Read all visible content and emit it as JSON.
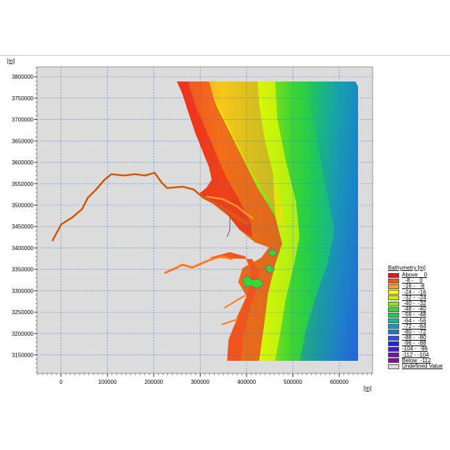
{
  "axes": {
    "y_unit_label": "[m]",
    "x_unit_label": "[m]",
    "x_ticks": [
      {
        "value": 0,
        "label": "0"
      },
      {
        "value": 100000,
        "label": "100000"
      },
      {
        "value": 200000,
        "label": "200000"
      },
      {
        "value": 300000,
        "label": "300000"
      },
      {
        "value": 400000,
        "label": "400000"
      },
      {
        "value": 500000,
        "label": "500000"
      },
      {
        "value": 600000,
        "label": "600000"
      }
    ],
    "y_ticks": [
      {
        "value": 3150000,
        "label": "3150000"
      },
      {
        "value": 3200000,
        "label": "3200000"
      },
      {
        "value": 3250000,
        "label": "3250000"
      },
      {
        "value": 3300000,
        "label": "3300000"
      },
      {
        "value": 3350000,
        "label": "3350000"
      },
      {
        "value": 3400000,
        "label": "3400000"
      },
      {
        "value": 3450000,
        "label": "3450000"
      },
      {
        "value": 3500000,
        "label": "3500000"
      },
      {
        "value": 3550000,
        "label": "3550000"
      },
      {
        "value": 3600000,
        "label": "3600000"
      },
      {
        "value": 3650000,
        "label": "3650000"
      },
      {
        "value": 3700000,
        "label": "3700000"
      },
      {
        "value": 3750000,
        "label": "3750000"
      },
      {
        "value": 3800000,
        "label": "3800000"
      }
    ],
    "xlim": [
      -52000,
      672000
    ],
    "ylim": [
      3107000,
      3823000
    ],
    "grid": true
  },
  "legend": {
    "title": "Bathymetry [m]",
    "entries": [
      {
        "label": "Above    0",
        "color": "#e8141a"
      },
      {
        "label": "  -8 -    0",
        "color": "#f0551e"
      },
      {
        "label": " -16 -   -8",
        "color": "#f7a12b"
      },
      {
        "label": " -24 -  -16",
        "color": "#ffff00"
      },
      {
        "label": " -32 -  -24",
        "color": "#c6f000"
      },
      {
        "label": " -40 -  -32",
        "color": "#8ae21a"
      },
      {
        "label": " -48 -  -40",
        "color": "#3cd72d"
      },
      {
        "label": " -56 -  -48",
        "color": "#1ec85a"
      },
      {
        "label": " -64 -  -56",
        "color": "#17b498"
      },
      {
        "label": " -72 -  -64",
        "color": "#1598b8"
      },
      {
        "label": " -80 -  -72",
        "color": "#1c76d2"
      },
      {
        "label": " -88 -  -80",
        "color": "#2a52e6"
      },
      {
        "label": " -96 -  -88",
        "color": "#2020e0"
      },
      {
        "label": "-104 -  -96",
        "color": "#4a18c8"
      },
      {
        "label": "-112 - -104",
        "color": "#6a14b4"
      },
      {
        "label": "Below  -112",
        "color": "#7e1296"
      },
      {
        "label": "Undefined Value",
        "color": "#dcdcdc"
      }
    ]
  },
  "colors": {
    "land": "#dcdcdc",
    "grid": "#3c6fd8"
  }
}
